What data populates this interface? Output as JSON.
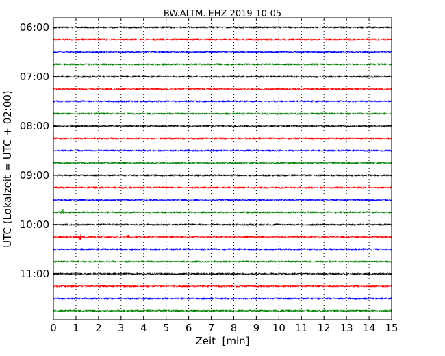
{
  "chart_data": {
    "type": "line",
    "title": "BW.ALTM..EHZ 2019-10-05",
    "xlabel": "Zeit  [min]",
    "ylabel": "UTC (Lokalzeit = UTC + 02:00)",
    "xlim": [
      0,
      15
    ],
    "x_ticks": [
      0,
      1,
      2,
      3,
      4,
      5,
      6,
      7,
      8,
      9,
      10,
      11,
      12,
      13,
      14,
      15
    ],
    "x_ticklabels": [
      "0",
      "1",
      "2",
      "3",
      "4",
      "5",
      "6",
      "7",
      "8",
      "9",
      "10",
      "11",
      "12",
      "13",
      "14",
      "15"
    ],
    "y_ticklabels": [
      "06:00",
      "07:00",
      "08:00",
      "09:00",
      "10:00",
      "11:00"
    ],
    "grid": "vertical dotted",
    "trace_colors": [
      "#000000",
      "#ff0000",
      "#0000ff",
      "#008000"
    ],
    "trace_start_times": [
      "06:00",
      "06:15",
      "06:30",
      "06:45",
      "07:00",
      "07:15",
      "07:30",
      "07:45",
      "08:00",
      "08:15",
      "08:30",
      "08:45",
      "09:00",
      "09:15",
      "09:30",
      "09:45",
      "10:00",
      "10:15",
      "10:30",
      "10:45",
      "11:00",
      "11:15",
      "11:30",
      "11:45"
    ],
    "events": [
      {
        "trace": "09:45",
        "time_min": 0.4,
        "amplitude": "small"
      },
      {
        "trace": "10:15",
        "time_min": 1.2,
        "amplitude": "small"
      },
      {
        "trace": "10:15",
        "time_min": 3.3,
        "amplitude": "very small"
      }
    ]
  }
}
